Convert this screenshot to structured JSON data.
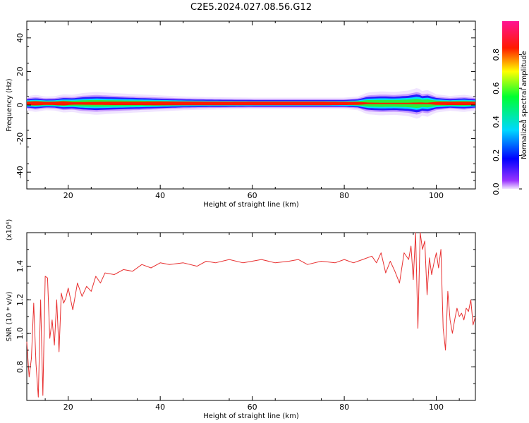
{
  "title": "C2E5.2024.027.08.56.G12",
  "colors": {
    "snr_line": "#e83030",
    "frame": "#000000",
    "spectrum_core": "#ff1a00"
  },
  "chart_data": [
    {
      "type": "heatmap",
      "xlabel": "Height of straight line (km)",
      "ylabel": "Frequency (Hz)",
      "xlim": [
        11,
        108.5
      ],
      "ylim": [
        -50,
        50
      ],
      "x_ticks": [
        20,
        40,
        60,
        80,
        100
      ],
      "y_ticks": [
        40,
        20,
        0,
        -20,
        -40
      ],
      "colorbar": {
        "label": "Normalized spectral amplitude",
        "range": [
          0,
          1
        ],
        "ticks": [
          "0.0",
          "0.2",
          "0.4",
          "0.6",
          "0.8"
        ],
        "colormap": "rainbow (magenta-blue-cyan-green-yellow-red-pink)"
      },
      "ridge": {
        "center_freq_hz": 1,
        "x": [
          11,
          13,
          15,
          17,
          19,
          21,
          23,
          26,
          30,
          35,
          40,
          45,
          50,
          55,
          60,
          65,
          70,
          75,
          80,
          83,
          85,
          88,
          91,
          94,
          96,
          97,
          98,
          100,
          103,
          106,
          108.5
        ],
        "half_width_hz": [
          2.5,
          3.0,
          2.4,
          2.5,
          3.2,
          3.0,
          3.6,
          4.0,
          3.6,
          3.2,
          2.8,
          2.4,
          2.2,
          2.1,
          2.0,
          2.0,
          2.0,
          2.0,
          2.0,
          2.4,
          3.8,
          4.2,
          4.0,
          4.5,
          5.5,
          4.2,
          4.8,
          3.2,
          2.6,
          3.0,
          2.5
        ],
        "core_half_width_hz": [
          1.0,
          1.2,
          0.9,
          1.0,
          1.2,
          0.8,
          0.8,
          0.9,
          1.0,
          1.0,
          1.1,
          1.1,
          1.1,
          1.1,
          1.1,
          1.1,
          1.1,
          1.1,
          1.0,
          0.9,
          0.5,
          0.4,
          0.4,
          0.4,
          0.5,
          0.5,
          0.4,
          0.9,
          1.0,
          1.0,
          1.0
        ]
      }
    },
    {
      "type": "line",
      "xlabel": "Height of straight line (km)",
      "ylabel": "SNR (10 * v/v)",
      "y_multiplier_label": "(x10⁴)",
      "xlim": [
        11,
        108.5
      ],
      "ylim": [
        0.6,
        1.6
      ],
      "x_ticks": [
        20,
        40,
        60,
        80,
        100
      ],
      "y_ticks": [
        "0.8",
        "1.0",
        "1.2",
        "1.4"
      ],
      "series": [
        {
          "x": [
            11,
            11.5,
            12,
            12.5,
            13,
            13.5,
            14,
            14.5,
            15,
            15.5,
            16,
            16.5,
            17,
            17.5,
            18,
            18.5,
            19,
            19.5,
            20,
            21,
            22,
            23,
            24,
            25,
            26,
            27,
            28,
            30,
            32,
            34,
            36,
            38,
            40,
            42,
            45,
            48,
            50,
            52,
            55,
            58,
            60,
            62,
            65,
            68,
            70,
            72,
            75,
            78,
            80,
            82,
            84,
            86,
            87,
            88,
            89,
            90,
            91,
            92,
            93,
            94,
            94.5,
            95,
            95.5,
            96,
            96.5,
            97,
            97.5,
            98,
            98.5,
            99,
            99.5,
            100,
            100.5,
            101,
            101.5,
            102,
            102.5,
            103,
            103.5,
            104,
            104.5,
            105,
            105.5,
            106,
            106.5,
            107,
            107.5,
            108,
            108.5
          ],
          "y": [
            0.95,
            0.74,
            0.85,
            1.18,
            0.82,
            0.62,
            1.2,
            0.63,
            1.34,
            1.33,
            0.97,
            1.08,
            0.93,
            1.2,
            0.89,
            1.24,
            1.18,
            1.21,
            1.27,
            1.14,
            1.3,
            1.22,
            1.28,
            1.25,
            1.34,
            1.3,
            1.36,
            1.35,
            1.38,
            1.37,
            1.41,
            1.39,
            1.42,
            1.41,
            1.42,
            1.4,
            1.43,
            1.42,
            1.44,
            1.42,
            1.43,
            1.44,
            1.42,
            1.43,
            1.44,
            1.41,
            1.43,
            1.42,
            1.44,
            1.42,
            1.44,
            1.46,
            1.42,
            1.48,
            1.36,
            1.43,
            1.37,
            1.3,
            1.48,
            1.44,
            1.52,
            1.32,
            1.63,
            1.03,
            1.63,
            1.5,
            1.55,
            1.23,
            1.45,
            1.35,
            1.42,
            1.48,
            1.39,
            1.5,
            1.03,
            0.9,
            1.25,
            1.08,
            1.0,
            1.08,
            1.15,
            1.1,
            1.12,
            1.08,
            1.15,
            1.13,
            1.2,
            1.05,
            1.1
          ]
        }
      ]
    }
  ]
}
